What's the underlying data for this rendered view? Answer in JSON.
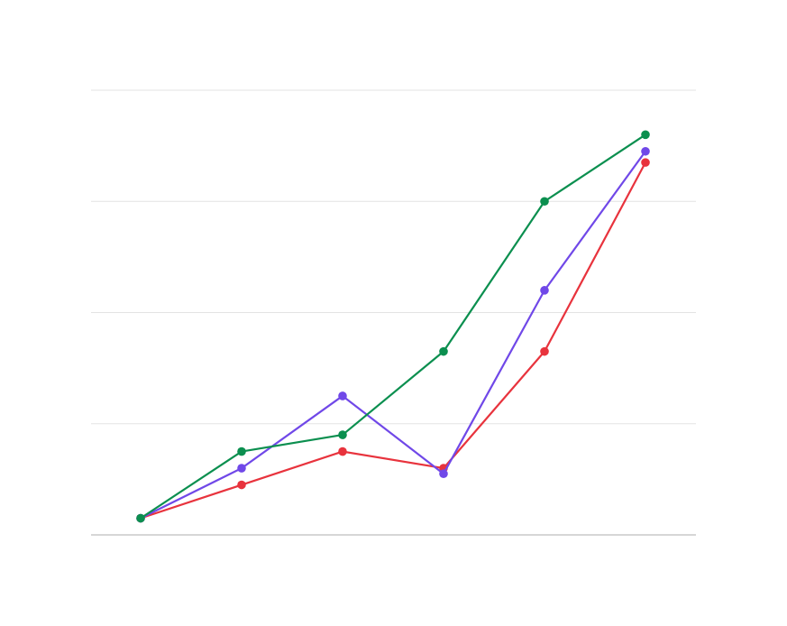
{
  "chart_data": {
    "type": "line",
    "title": "",
    "xlabel": "",
    "ylabel": "",
    "x": [
      1,
      2,
      3,
      4,
      5,
      6
    ],
    "ylim": [
      0,
      8
    ],
    "grid": true,
    "series": [
      {
        "color": "#e8333d",
        "values": [
          0.3,
          0.9,
          1.5,
          1.2,
          3.3,
          6.7
        ]
      },
      {
        "color": "#7048e8",
        "values": [
          0.3,
          1.2,
          2.5,
          1.1,
          4.4,
          6.9
        ]
      },
      {
        "color": "#0b8f4f",
        "values": [
          0.3,
          1.5,
          1.8,
          3.3,
          6.0,
          7.2
        ]
      }
    ]
  },
  "colors": {
    "grid": "#e3e3e3",
    "baseline": "#bdbdbd"
  }
}
